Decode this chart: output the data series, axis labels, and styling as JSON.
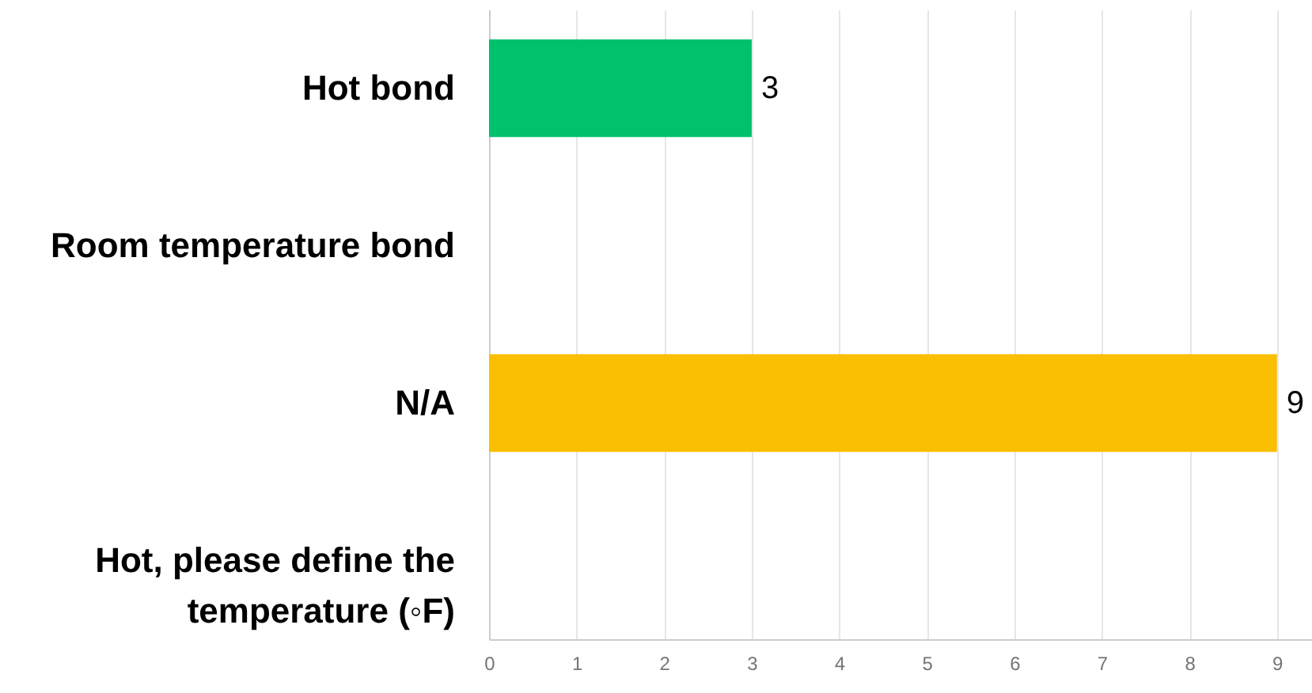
{
  "chart_data": {
    "type": "bar",
    "orientation": "horizontal",
    "categories": [
      "Hot bond",
      "Room temperature bond",
      "N/A",
      "Hot, please define the temperature (◦F)"
    ],
    "values": [
      3,
      0,
      9,
      0
    ],
    "colors": [
      "#00c16e",
      null,
      "#f9bf00",
      null
    ],
    "value_labels": [
      "3",
      null,
      "9",
      null
    ],
    "xlim": [
      0,
      9.4
    ],
    "xticks": [
      0,
      1,
      2,
      3,
      4,
      5,
      6,
      7,
      8,
      9
    ],
    "grid": "x"
  }
}
